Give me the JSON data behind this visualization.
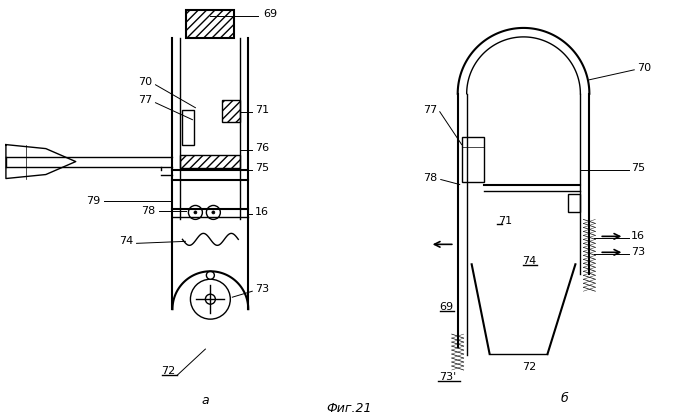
{
  "fig_label": "Фиг.21",
  "sub_a": "а",
  "sub_b": "б",
  "bg_color": "#ffffff",
  "line_color": "#000000"
}
